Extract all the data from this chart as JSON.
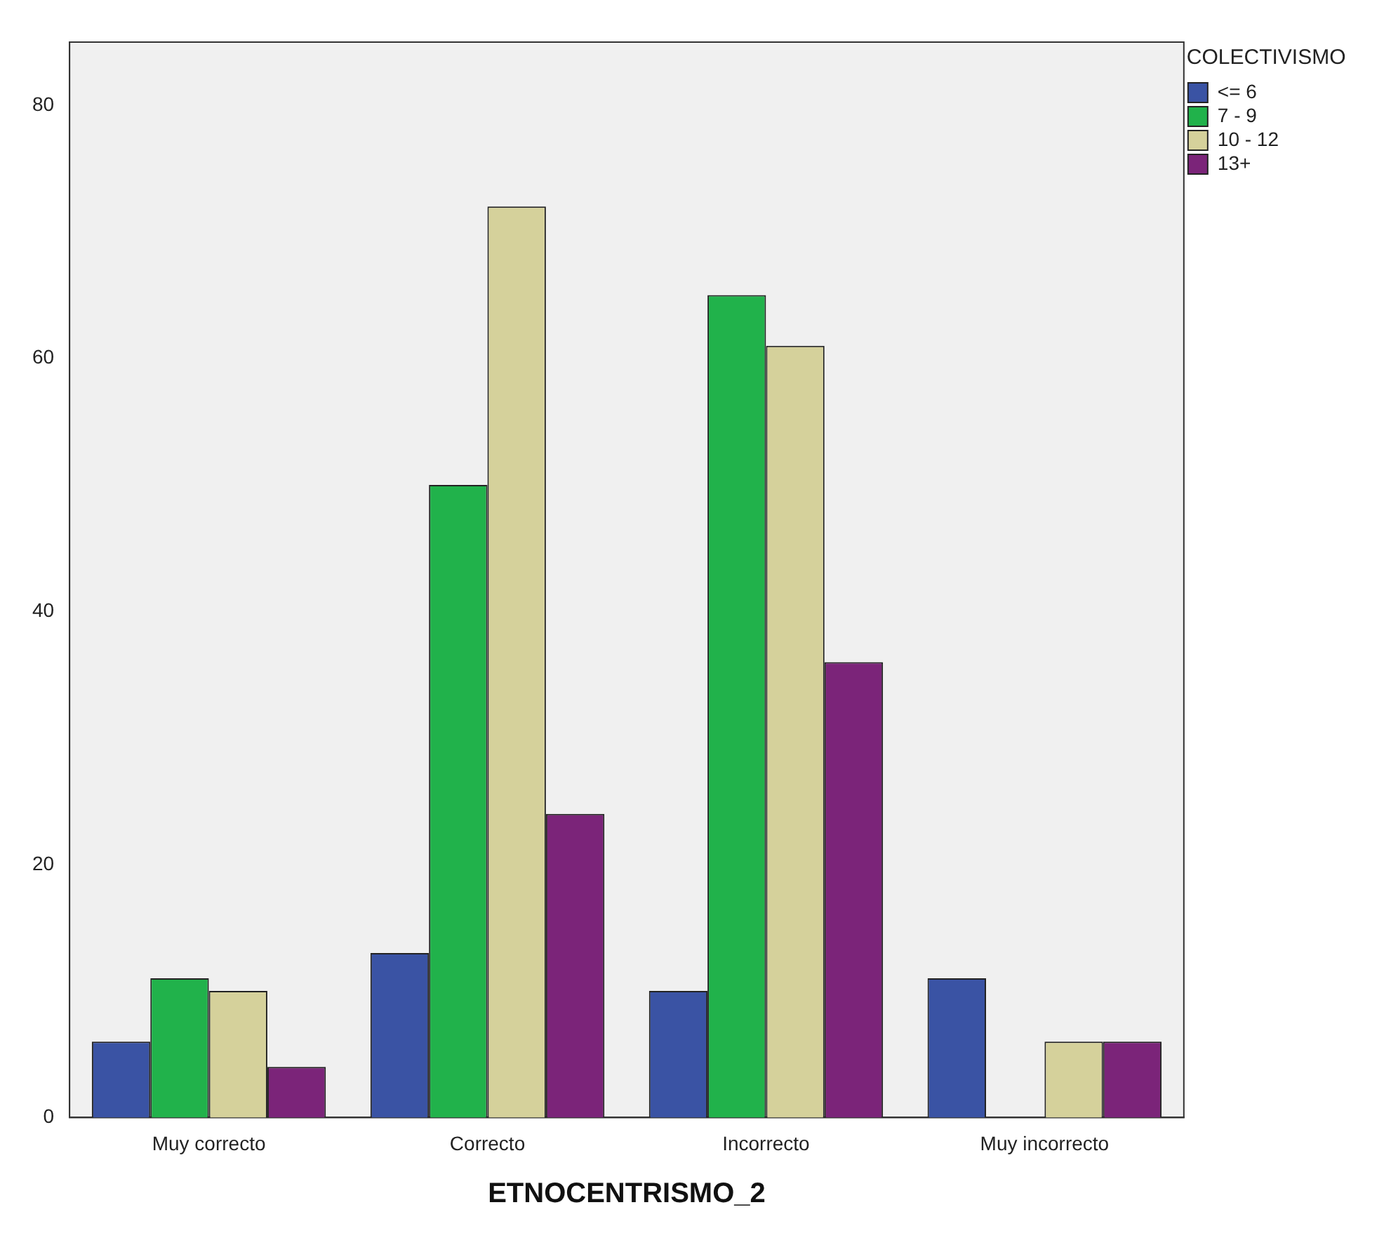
{
  "chart_data": {
    "type": "bar",
    "xlabel": "ETNOCENTRISMO_2",
    "legend_title": "COLECTIVISMO",
    "legend": "top right",
    "grid": false,
    "categories": [
      "Muy correcto",
      "Correcto",
      "Incorrecto",
      "Muy incorrecto"
    ],
    "ylim": [
      0,
      85
    ],
    "yticks": [
      0,
      20,
      40,
      60,
      80
    ],
    "series": [
      {
        "name": "<= 6",
        "color": "#3a53a4",
        "values": [
          6,
          13,
          10,
          11
        ]
      },
      {
        "name": "7 - 9",
        "color": "#21b24b",
        "values": [
          11,
          50,
          65,
          0
        ]
      },
      {
        "name": "10 - 12",
        "color": "#d5d19b",
        "values": [
          10,
          72,
          61,
          6
        ]
      },
      {
        "name": "13+",
        "color": "#7b2479",
        "values": [
          4,
          24,
          36,
          6
        ]
      }
    ]
  }
}
